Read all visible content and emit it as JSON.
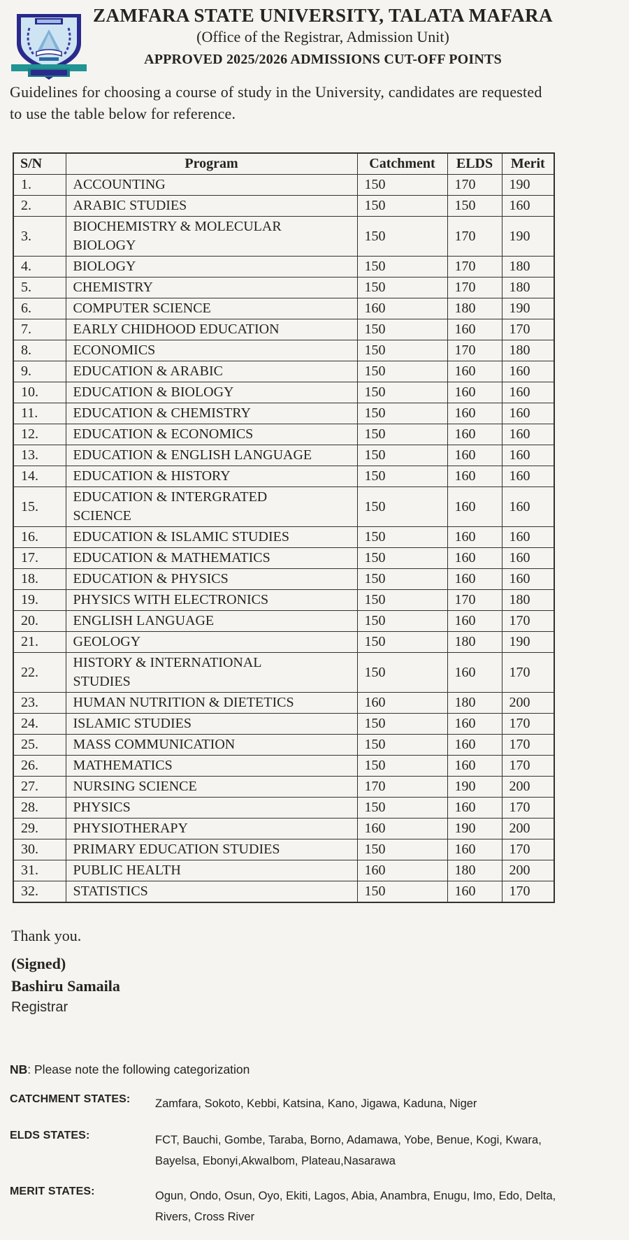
{
  "header": {
    "logo": "university-crest",
    "line1": "ZAMFARA STATE UNIVERSITY, TALATA MAFARA",
    "line2": "(Office of the Registrar, Admission Unit)",
    "line3": "APPROVED 2025/2026 ADMISSIONS CUT-OFF POINTS"
  },
  "intro": "Guidelines for choosing a course of study in the University, candidates are requested\nto use the table below for reference.",
  "table": {
    "headers": {
      "sn": "S/N",
      "program": "Program",
      "catchment": "Catchment",
      "elds": "ELDS",
      "merit": "Merit"
    },
    "rows": [
      {
        "sn": "1.",
        "program": "ACCOUNTING",
        "catchment": "150",
        "elds": "170",
        "merit": "190"
      },
      {
        "sn": "2.",
        "program": "ARABIC STUDIES",
        "catchment": "150",
        "elds": "150",
        "merit": "160"
      },
      {
        "sn": "3.",
        "program": "BIOCHEMISTRY & MOLECULAR\nBIOLOGY",
        "catchment": "150",
        "elds": "170",
        "merit": "190"
      },
      {
        "sn": "4.",
        "program": "BIOLOGY",
        "catchment": "150",
        "elds": "170",
        "merit": "180"
      },
      {
        "sn": "5.",
        "program": "CHEMISTRY",
        "catchment": "150",
        "elds": "170",
        "merit": "180"
      },
      {
        "sn": "6.",
        "program": "COMPUTER SCIENCE",
        "catchment": "160",
        "elds": "180",
        "merit": "190"
      },
      {
        "sn": "7.",
        "program": "EARLY CHIDHOOD EDUCATION",
        "catchment": "150",
        "elds": "160",
        "merit": "170"
      },
      {
        "sn": "8.",
        "program": "ECONOMICS",
        "catchment": "150",
        "elds": "170",
        "merit": "180"
      },
      {
        "sn": "9.",
        "program": "EDUCATION & ARABIC",
        "catchment": "150",
        "elds": "160",
        "merit": "160"
      },
      {
        "sn": "10.",
        "program": "EDUCATION & BIOLOGY",
        "catchment": "150",
        "elds": "160",
        "merit": "160"
      },
      {
        "sn": "11.",
        "program": "EDUCATION & CHEMISTRY",
        "catchment": "150",
        "elds": "160",
        "merit": "160"
      },
      {
        "sn": "12.",
        "program": "EDUCATION & ECONOMICS",
        "catchment": "150",
        "elds": "160",
        "merit": "160"
      },
      {
        "sn": "13.",
        "program": "EDUCATION & ENGLISH LANGUAGE",
        "catchment": "150",
        "elds": "160",
        "merit": "160"
      },
      {
        "sn": "14.",
        "program": "EDUCATION & HISTORY",
        "catchment": "150",
        "elds": "160",
        "merit": "160"
      },
      {
        "sn": "15.",
        "program": "EDUCATION & INTERGRATED\nSCIENCE",
        "catchment": "150",
        "elds": "160",
        "merit": "160"
      },
      {
        "sn": "16.",
        "program": "EDUCATION & ISLAMIC STUDIES",
        "catchment": "150",
        "elds": "160",
        "merit": "160"
      },
      {
        "sn": "17.",
        "program": "EDUCATION & MATHEMATICS",
        "catchment": "150",
        "elds": "160",
        "merit": "160"
      },
      {
        "sn": "18.",
        "program": "EDUCATION & PHYSICS",
        "catchment": "150",
        "elds": "160",
        "merit": "160"
      },
      {
        "sn": "19.",
        "program": "PHYSICS WITH ELECTRONICS",
        "catchment": "150",
        "elds": "170",
        "merit": "180"
      },
      {
        "sn": "20.",
        "program": "ENGLISH LANGUAGE",
        "catchment": "150",
        "elds": "160",
        "merit": "170"
      },
      {
        "sn": "21.",
        "program": "GEOLOGY",
        "catchment": "150",
        "elds": "180",
        "merit": "190"
      },
      {
        "sn": "22.",
        "program": "HISTORY & INTERNATIONAL\nSTUDIES",
        "catchment": "150",
        "elds": "160",
        "merit": "170"
      },
      {
        "sn": "23.",
        "program": "HUMAN NUTRITION & DIETETICS",
        "catchment": "160",
        "elds": "180",
        "merit": "200"
      },
      {
        "sn": "24.",
        "program": "ISLAMIC STUDIES",
        "catchment": "150",
        "elds": "160",
        "merit": "170"
      },
      {
        "sn": "25.",
        "program": "MASS COMMUNICATION",
        "catchment": "150",
        "elds": "160",
        "merit": "170"
      },
      {
        "sn": "26.",
        "program": "MATHEMATICS",
        "catchment": "150",
        "elds": "160",
        "merit": "170"
      },
      {
        "sn": "27.",
        "program": "NURSING SCIENCE",
        "catchment": "170",
        "elds": "190",
        "merit": "200"
      },
      {
        "sn": "28.",
        "program": "PHYSICS",
        "catchment": "150",
        "elds": "160",
        "merit": "170"
      },
      {
        "sn": "29.",
        "program": "PHYSIOTHERAPY",
        "catchment": "160",
        "elds": "190",
        "merit": "200"
      },
      {
        "sn": "30.",
        "program": "PRIMARY EDUCATION STUDIES",
        "catchment": "150",
        "elds": "160",
        "merit": "170"
      },
      {
        "sn": "31.",
        "program": "PUBLIC HEALTH",
        "catchment": "160",
        "elds": "180",
        "merit": "200"
      },
      {
        "sn": "32.",
        "program": "STATISTICS",
        "catchment": "150",
        "elds": "160",
        "merit": "170"
      }
    ]
  },
  "signature": {
    "thanks": "Thank you.",
    "signed": "(Signed)",
    "name": "Bashiru Samaila",
    "role": "Registrar"
  },
  "notes": {
    "nb_label": "NB",
    "nb_rest": ": Please note the following categorization",
    "categories": [
      {
        "label": "CATCHMENT STATES:",
        "value": "Zamfara, Sokoto, Kebbi, Katsina, Kano, Jigawa, Kaduna, Niger"
      },
      {
        "label": "ELDS STATES:",
        "value": "FCT, Bauchi, Gombe, Taraba, Borno, Adamawa, Yobe, Benue, Kogi, Kwara,\nBayelsa, Ebonyi,AkwaIbom, Plateau,Nasarawa"
      },
      {
        "label": "MERIT STATES:",
        "value": "Ogun, Ondo, Osun, Oyo, Ekiti, Lagos, Abia, Anambra, Enugu, Imo, Edo, Delta,\nRivers, Cross River"
      }
    ]
  },
  "colors": {
    "crest_navy": "#2a2a8c",
    "crest_light_blue": "#cfe4f3",
    "crest_teal": "#219494",
    "text": "#26241f",
    "background": "#f5f4f1"
  }
}
